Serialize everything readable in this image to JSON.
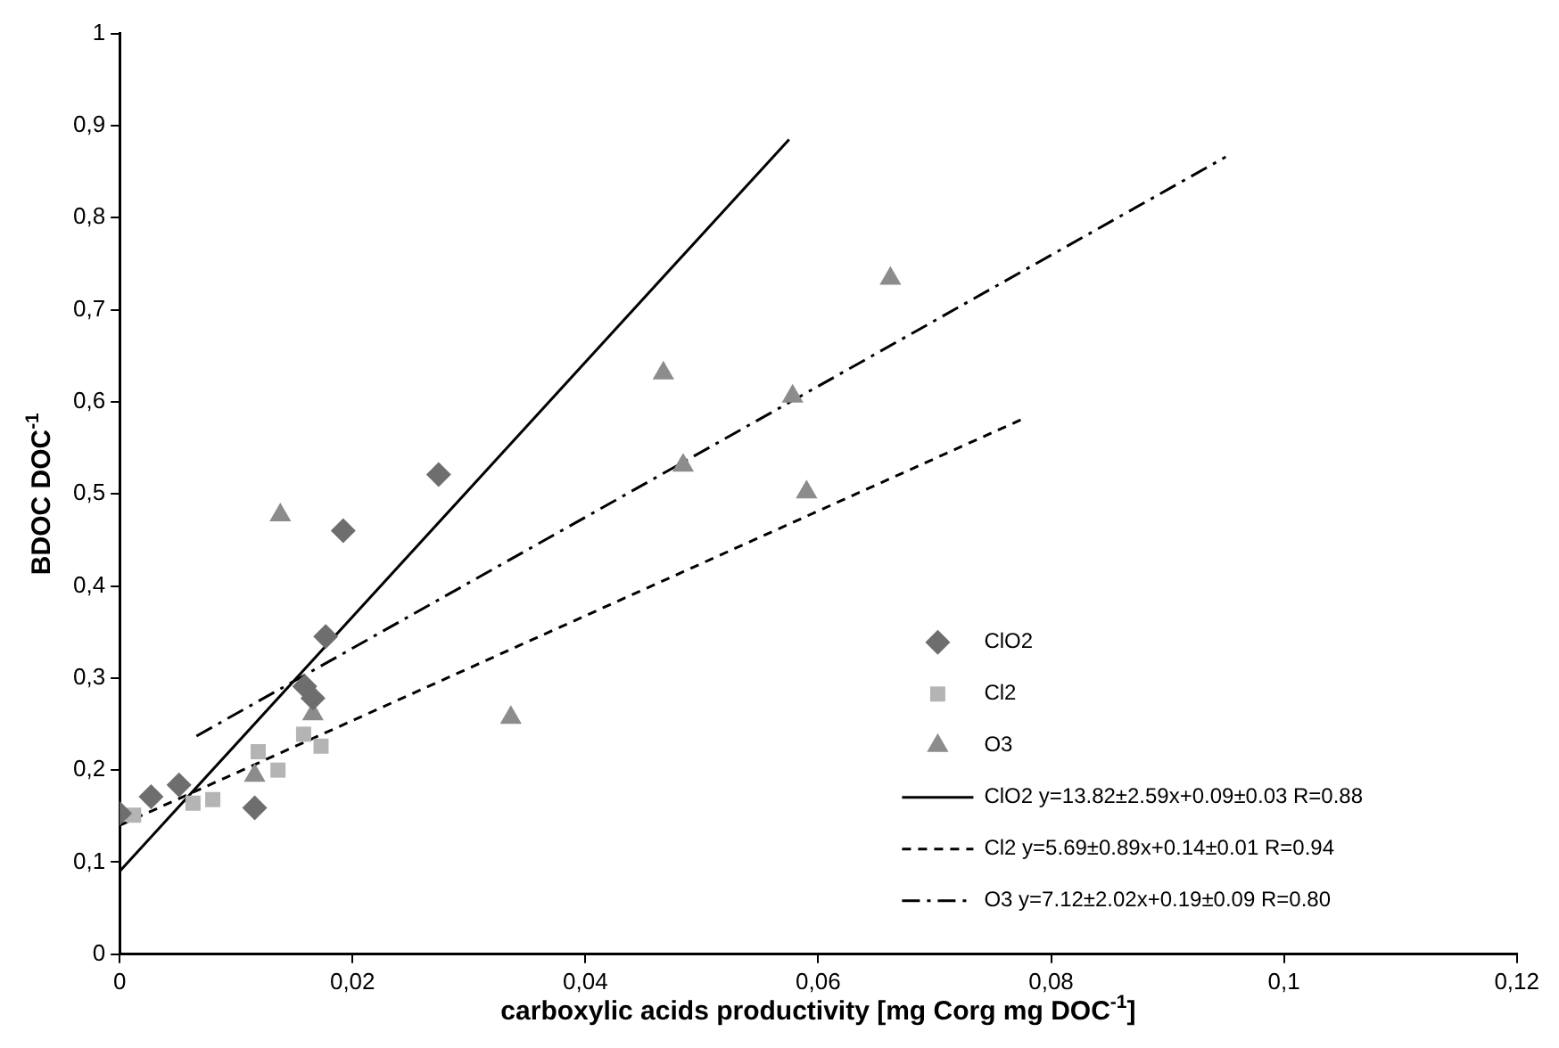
{
  "chart_data": {
    "type": "scatter",
    "xlabel": "carboxylic acids productivity [mg Corg mg DOC$^{-1}$]",
    "ylabel": "BDOC DOC$^{-1}$",
    "xlim": [
      0,
      0.12
    ],
    "xticks": [
      0,
      {
        "value": 0.02,
        "label": "0,02"
      },
      {
        "value": 0.04,
        "label": "0,04"
      },
      {
        "value": 0.06,
        "label": "0,06"
      },
      {
        "value": 0.08,
        "label": "0,08"
      },
      {
        "value": 0.1,
        "label": "0,1"
      },
      {
        "value": 0.12,
        "label": "0,12"
      }
    ],
    "ylim": [
      0,
      1
    ],
    "yticks": [
      0,
      {
        "value": 0.1,
        "label": "0,1"
      },
      {
        "value": 0.2,
        "label": "0,2"
      },
      {
        "value": 0.3,
        "label": "0,3"
      },
      {
        "value": 0.4,
        "label": "0,4"
      },
      {
        "value": 0.5,
        "label": "0,5"
      },
      {
        "value": 0.6,
        "label": "0,6"
      },
      {
        "value": 0.7,
        "label": "0,7"
      },
      {
        "value": 0.8,
        "label": "0,8"
      },
      {
        "value": 0.9,
        "label": "0,9"
      },
      1
    ],
    "grid": false,
    "legend": "bottom right",
    "series": [
      {
        "name": "ClO2",
        "marker": "diamond",
        "color": "#6e6e6e",
        "x": [
          0,
          0.0027,
          0.0051,
          0.0116,
          0.0159,
          0.0166,
          0.0177,
          0.0192,
          0.0274
        ],
        "values": [
          0.153,
          0.171,
          0.184,
          0.159,
          0.291,
          0.278,
          0.345,
          0.46,
          0.521
        ]
      },
      {
        "name": "Cl2",
        "marker": "square",
        "color": "#b4b4b4",
        "x": [
          0.0012,
          0.0063,
          0.008,
          0.0119,
          0.0136,
          0.0158,
          0.0173
        ],
        "values": [
          0.151,
          0.164,
          0.168,
          0.22,
          0.2,
          0.239,
          0.226
        ]
      },
      {
        "name": "O3",
        "marker": "triangle",
        "color": "#8c8c8c",
        "x": [
          0.0116,
          0.0138,
          0.0166,
          0.0336,
          0.0467,
          0.0484,
          0.0578,
          0.059,
          0.0662
        ],
        "values": [
          0.194,
          0.477,
          0.261,
          0.257,
          0.631,
          0.531,
          0.606,
          0.502,
          0.734
        ]
      },
      {
        "name": "ClO2 y=13.82±2.59x+0.09±0.03 R=0.88",
        "type": "line",
        "marker": "none",
        "line_style": "solid",
        "color": "#000000",
        "x": [
          0,
          0.0575
        ],
        "values": [
          0.09,
          0.885
        ]
      },
      {
        "name": "Cl2 y=5.69±0.89x+0.14±0.01 R=0.94",
        "type": "line",
        "marker": "none",
        "line_style": "dashed",
        "color": "#000000",
        "x": [
          0,
          0.0775
        ],
        "values": [
          0.14,
          0.581
        ]
      },
      {
        "name": "O3 y=7.12±2.02x+0.19±0.09 R=0.80",
        "type": "line",
        "marker": "none",
        "line_style": "dashdot",
        "color": "#000000",
        "x": [
          0.0066,
          0.095
        ],
        "values": [
          0.237,
          0.866
        ]
      }
    ]
  }
}
